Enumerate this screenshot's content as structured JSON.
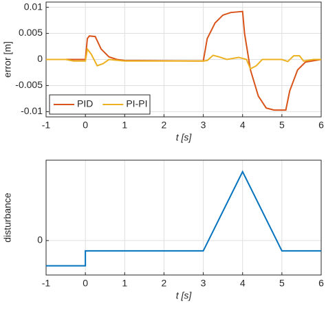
{
  "chart_data": [
    {
      "type": "line",
      "ylabel": "error [m]",
      "xlabel": "t [s]",
      "xlim": [
        -1,
        6
      ],
      "xticks": [
        -1,
        0,
        1,
        2,
        3,
        4,
        5,
        6
      ],
      "ylim": [
        -0.011,
        0.011
      ],
      "yticks": [
        -0.01,
        -0.005,
        0,
        0.005,
        0.01
      ],
      "grid": true,
      "legend": "lower left",
      "series": [
        {
          "name": "PID",
          "color": "#d95319",
          "x": [
            -1,
            0,
            0.05,
            0.1,
            0.25,
            0.4,
            0.6,
            0.8,
            1,
            3,
            3.1,
            3.3,
            3.5,
            3.7,
            4,
            4.05,
            4.2,
            4.4,
            4.6,
            4.8,
            5.1,
            5.2,
            5.4,
            5.6,
            6
          ],
          "values": [
            0,
            0,
            0.004,
            0.0045,
            0.0044,
            0.002,
            0.0005,
            0,
            -0.0002,
            -0.0003,
            0.004,
            0.007,
            0.0085,
            0.009,
            0.0092,
            0.005,
            -0.002,
            -0.007,
            -0.0093,
            -0.0097,
            -0.0097,
            -0.006,
            -0.002,
            -0.0005,
            0
          ]
        },
        {
          "name": "PI-PI",
          "color": "#edb120",
          "x": [
            -1,
            -0.5,
            -0.3,
            0,
            0.05,
            0.15,
            0.3,
            0.45,
            0.6,
            1,
            3,
            3.1,
            3.25,
            3.4,
            3.6,
            3.9,
            4.1,
            4.2,
            4.35,
            4.5,
            5,
            5.15,
            5.3,
            5.45,
            5.55,
            5.8,
            6
          ],
          "values": [
            0,
            0,
            -0.0003,
            -0.0003,
            0.002,
            0.001,
            -0.0012,
            -0.0008,
            0,
            -0.0003,
            -0.0003,
            -0.0002,
            0.0008,
            0.0005,
            0,
            0.0004,
            0,
            -0.0018,
            -0.0012,
            0,
            0,
            -0.0004,
            0.0007,
            0.0007,
            -0.0003,
            0,
            0
          ]
        }
      ]
    },
    {
      "type": "line",
      "ylabel": "disturbance",
      "xlabel": "t [s]",
      "xlim": [
        -1,
        6
      ],
      "xticks": [
        -1,
        0,
        1,
        2,
        3,
        4,
        5,
        6
      ],
      "ylim": [
        -1.5,
        3.5
      ],
      "yticks": [
        0
      ],
      "grid": true,
      "series": [
        {
          "color": "#0072bd",
          "x": [
            -1,
            0,
            0,
            3,
            4,
            5,
            6
          ],
          "values": [
            -1.1,
            -1.1,
            -0.45,
            -0.45,
            3,
            -0.45,
            -0.45
          ]
        }
      ]
    }
  ]
}
